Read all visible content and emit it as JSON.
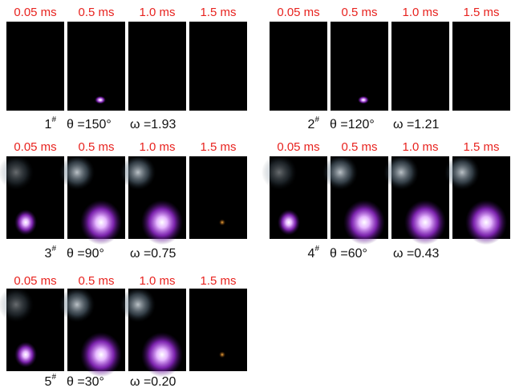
{
  "panels": [
    {
      "times": [
        "0.05 ms",
        "0.5 ms",
        "1.0 ms",
        "1.5 ms"
      ],
      "id": "1",
      "id_sup": "#",
      "theta": "θ =150°",
      "omega": "ω =1.93"
    },
    {
      "times": [
        "0.05 ms",
        "0.5 ms",
        "1.0 ms",
        "1.5 ms"
      ],
      "id": "2",
      "id_sup": "#",
      "theta": "θ =120°",
      "omega": "ω =1.21"
    },
    {
      "times": [
        "0.05 ms",
        "0.5 ms",
        "1.0 ms",
        "1.5 ms"
      ],
      "id": "3",
      "id_sup": "#",
      "theta": "θ =90°",
      "omega": "ω =0.75"
    },
    {
      "times": [
        "0.05 ms",
        "0.5 ms",
        "1.0 ms",
        "1.5 ms"
      ],
      "id": "4",
      "id_sup": "#",
      "theta": "θ =60°",
      "omega": "ω =0.43"
    },
    {
      "times": [
        "0.05 ms",
        "0.5 ms",
        "1.0 ms",
        "1.5 ms"
      ],
      "id": "5",
      "id_sup": "#",
      "theta": "θ =30°",
      "omega": "ω =0.20"
    }
  ]
}
